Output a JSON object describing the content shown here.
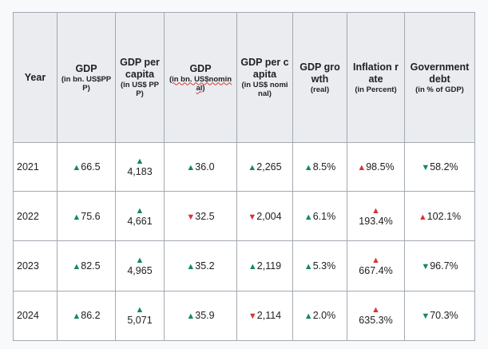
{
  "table": {
    "headers": [
      {
        "main": "Year",
        "sub": ""
      },
      {
        "main": "GDP",
        "sub": "(in bn. US$PPP)"
      },
      {
        "main": "GDP per capita",
        "sub": "(in US$ PPP)"
      },
      {
        "main": "GDP",
        "sub": "(in bn. US$nominal)"
      },
      {
        "main": "GDP per capita",
        "sub": "(in US$ nominal)"
      },
      {
        "main": "GDP growth",
        "sub": "(real)"
      },
      {
        "main": "Inflation rate",
        "sub": "(in Percent)"
      },
      {
        "main": "Government debt",
        "sub": "(in % of GDP)"
      }
    ],
    "rows": [
      {
        "year": "2021",
        "gdp_ppp": "66.5",
        "gdp_pc_ppp": "4,183",
        "gdp_nom": "36.0",
        "gdp_pc_nom": "2,265",
        "growth": "8.5%",
        "inflation": "98.5%",
        "debt": "58.2%"
      },
      {
        "year": "2022",
        "gdp_ppp": "75.6",
        "gdp_pc_ppp": "4,661",
        "gdp_nom": "32.5",
        "gdp_pc_nom": "2,004",
        "growth": "6.1%",
        "inflation": "193.4%",
        "debt": "102.1%"
      },
      {
        "year": "2023",
        "gdp_ppp": "82.5",
        "gdp_pc_ppp": "4,965",
        "gdp_nom": "35.2",
        "gdp_pc_nom": "2,119",
        "growth": "5.3%",
        "inflation": "667.4%",
        "debt": "96.7%"
      },
      {
        "year": "2024",
        "gdp_ppp": "86.2",
        "gdp_pc_ppp": "5,071",
        "gdp_nom": "35.9",
        "gdp_pc_nom": "2,114",
        "growth": "2.0%",
        "inflation": "635.3%",
        "debt": "70.3%"
      }
    ],
    "trends": [
      {
        "gdp_ppp": "up",
        "gdp_pc_ppp": "up",
        "gdp_nom": "up",
        "gdp_pc_nom": "up",
        "growth": "up",
        "inflation": "up-bad",
        "debt": "down-good"
      },
      {
        "gdp_ppp": "up",
        "gdp_pc_ppp": "up",
        "gdp_nom": "down",
        "gdp_pc_nom": "down",
        "growth": "up",
        "inflation": "up-bad",
        "debt": "up-bad"
      },
      {
        "gdp_ppp": "up",
        "gdp_pc_ppp": "up",
        "gdp_nom": "up",
        "gdp_pc_nom": "up",
        "growth": "up",
        "inflation": "up-bad",
        "debt": "down-good"
      },
      {
        "gdp_ppp": "up",
        "gdp_pc_ppp": "up",
        "gdp_nom": "up",
        "gdp_pc_nom": "down",
        "growth": "up",
        "inflation": "up-bad",
        "debt": "down-good"
      }
    ],
    "icons": {
      "up": "increase-arrow-icon",
      "down": "decrease-arrow-icon"
    },
    "colors": {
      "increase": "#14866d",
      "decrease": "#dd3333",
      "header_bg": "#eaecf0",
      "border": "#a2a9b1"
    }
  }
}
